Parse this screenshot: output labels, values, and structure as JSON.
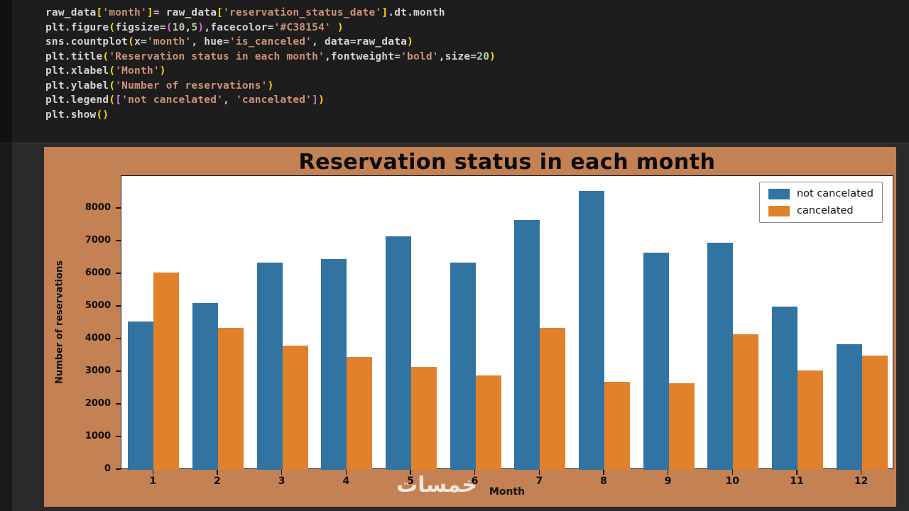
{
  "code": {
    "lines": [
      [
        [
          "d",
          "raw_data"
        ],
        [
          "b",
          "["
        ],
        [
          "s",
          "'month'"
        ],
        [
          "b",
          "]"
        ],
        [
          "d",
          "= raw_data"
        ],
        [
          "b",
          "["
        ],
        [
          "s",
          "'reservation_status_date'"
        ],
        [
          "b",
          "]"
        ],
        [
          "d",
          ".dt.month"
        ]
      ],
      [
        [
          "d",
          "plt.figure"
        ],
        [
          "b",
          "("
        ],
        [
          "d",
          "figsize="
        ],
        [
          "p",
          "("
        ],
        [
          "n",
          "10"
        ],
        [
          "d",
          ","
        ],
        [
          "n",
          "5"
        ],
        [
          "p",
          ")"
        ],
        [
          "d",
          ",facecolor="
        ],
        [
          "s",
          "'#C38154'"
        ],
        [
          "d",
          " "
        ],
        [
          "b",
          ")"
        ]
      ],
      [
        [
          "d",
          "sns.countplot"
        ],
        [
          "b",
          "("
        ],
        [
          "d",
          "x="
        ],
        [
          "s",
          "'month'"
        ],
        [
          "d",
          ", hue="
        ],
        [
          "s",
          "'is_canceled'"
        ],
        [
          "d",
          ", data=raw_data"
        ],
        [
          "b",
          ")"
        ]
      ],
      [
        [
          "d",
          "plt.title"
        ],
        [
          "b",
          "("
        ],
        [
          "s",
          "'Reservation status in each month'"
        ],
        [
          "d",
          ",fontweight="
        ],
        [
          "s",
          "'bold'"
        ],
        [
          "d",
          ",size="
        ],
        [
          "n",
          "20"
        ],
        [
          "b",
          ")"
        ]
      ],
      [
        [
          "d",
          "plt.xlabel"
        ],
        [
          "b",
          "("
        ],
        [
          "s",
          "'Month'"
        ],
        [
          "b",
          ")"
        ]
      ],
      [
        [
          "d",
          "plt.ylabel"
        ],
        [
          "b",
          "("
        ],
        [
          "s",
          "'Number of reservations'"
        ],
        [
          "b",
          ")"
        ]
      ],
      [
        [
          "d",
          "plt.legend"
        ],
        [
          "b",
          "("
        ],
        [
          "p",
          "["
        ],
        [
          "s",
          "'not cancelated'"
        ],
        [
          "d",
          ", "
        ],
        [
          "s",
          "'cancelated'"
        ],
        [
          "p",
          "]"
        ],
        [
          "b",
          ")"
        ]
      ],
      [
        [
          "d",
          "plt.show"
        ],
        [
          "b",
          "("
        ],
        [
          "b",
          ")"
        ]
      ]
    ]
  },
  "chart_data": {
    "type": "bar",
    "title": "Reservation status in each month",
    "xlabel": "Month",
    "ylabel": "Number of reservations",
    "facecolor": "#C38154",
    "categories": [
      1,
      2,
      3,
      4,
      5,
      6,
      7,
      8,
      9,
      10,
      11,
      12
    ],
    "series": [
      {
        "name": "not cancelated",
        "color": "#3274a1",
        "values": [
          4550,
          5100,
          6350,
          6450,
          7150,
          6350,
          7650,
          8550,
          6650,
          6950,
          5000,
          3850
        ]
      },
      {
        "name": "cancelated",
        "color": "#e1812c",
        "values": [
          6050,
          4350,
          3800,
          3450,
          3150,
          2900,
          4350,
          2700,
          2650,
          4150,
          3050,
          3500
        ]
      }
    ],
    "ylim": [
      0,
      9000
    ],
    "yticks": [
      0,
      1000,
      2000,
      3000,
      4000,
      5000,
      6000,
      7000,
      8000
    ],
    "grid": false,
    "legend_position": "upper right"
  },
  "watermark": "خمسات"
}
